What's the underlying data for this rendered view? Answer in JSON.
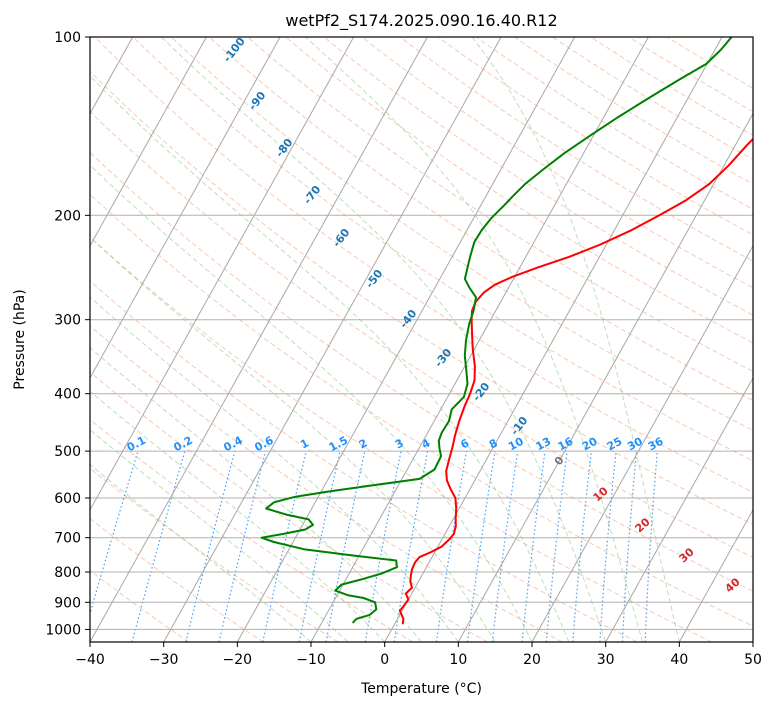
{
  "chart_data": {
    "type": "line",
    "title": "wetPf2_S174.2025.090.16.40.R12",
    "xlabel": "Temperature (°C)",
    "ylabel": "Pressure (hPa)",
    "xlim": [
      -40,
      50
    ],
    "ylim": [
      1050,
      100
    ],
    "yscale": "log",
    "grid": true,
    "x_ticks": [
      -40,
      -30,
      -20,
      -10,
      0,
      10,
      20,
      30,
      40,
      50
    ],
    "y_ticks": [
      100,
      200,
      300,
      400,
      500,
      600,
      700,
      800,
      900,
      1000
    ],
    "mixing_ratio_labels": [
      "0.1",
      "0.2",
      "0.4",
      "0.6",
      "1",
      "1.5",
      "2",
      "3",
      "4",
      "6",
      "8",
      "10",
      "13",
      "16",
      "20",
      "25",
      "30",
      "36"
    ],
    "dry_adiabat_labels": [
      "-100",
      "-90",
      "-80",
      "-70",
      "-60",
      "-50",
      "-40",
      "-30",
      "-20",
      "-10",
      "0"
    ],
    "moist_adiabat_labels": [
      "10",
      "20",
      "30",
      "40"
    ],
    "colors": {
      "temperature": "#ff0000",
      "dewpoint": "#008000",
      "mixing": "#1e90ff",
      "dry_label": "#1f77b4",
      "moist_label": "#d62728"
    },
    "series": [
      {
        "key": "temperature",
        "points": [
          [
            1.1,
            980
          ],
          [
            0.8,
            960
          ],
          [
            -0.3,
            930
          ],
          [
            -0.1,
            905
          ],
          [
            0,
            890
          ],
          [
            -0.8,
            870
          ],
          [
            -0.4,
            850
          ],
          [
            -1.1,
            830
          ],
          [
            -1.5,
            810
          ],
          [
            -1.8,
            790
          ],
          [
            -1.9,
            770
          ],
          [
            -1.7,
            755
          ],
          [
            -0.5,
            740
          ],
          [
            0.5,
            725
          ],
          [
            1.0,
            705
          ],
          [
            1.2,
            690
          ],
          [
            0.9,
            670
          ],
          [
            0.3,
            650
          ],
          [
            -0.4,
            625
          ],
          [
            -1.3,
            600
          ],
          [
            -2.6,
            580
          ],
          [
            -3.8,
            560
          ],
          [
            -4.6,
            540
          ],
          [
            -5.1,
            515
          ],
          [
            -5.6,
            490
          ],
          [
            -6.1,
            470
          ],
          [
            -6.6,
            445
          ],
          [
            -7.0,
            420
          ],
          [
            -7.2,
            400
          ],
          [
            -7.6,
            380
          ],
          [
            -8.6,
            360
          ],
          [
            -10.3,
            335
          ],
          [
            -11.6,
            315
          ],
          [
            -12.6,
            300
          ],
          [
            -13.2,
            290
          ],
          [
            -13.4,
            280
          ],
          [
            -13.0,
            270
          ],
          [
            -12.1,
            262
          ],
          [
            -10.3,
            254
          ],
          [
            -7.6,
            245
          ],
          [
            -4.1,
            235
          ],
          [
            -0.8,
            224
          ],
          [
            2.3,
            212
          ],
          [
            5.0,
            200
          ],
          [
            7.4,
            189
          ],
          [
            9.4,
            177
          ],
          [
            10.6,
            165
          ],
          [
            11.6,
            152
          ],
          [
            12.8,
            140
          ],
          [
            14.3,
            128
          ],
          [
            16.4,
            118
          ],
          [
            18.6,
            110
          ],
          [
            20.6,
            104
          ],
          [
            21.6,
            100
          ]
        ]
      },
      {
        "key": "dewpoint",
        "points": [
          [
            -5.8,
            975
          ],
          [
            -5.6,
            960
          ],
          [
            -4.1,
            945
          ],
          [
            -3.6,
            925
          ],
          [
            -4.3,
            900
          ],
          [
            -6.2,
            885
          ],
          [
            -8.6,
            875
          ],
          [
            -10.6,
            860
          ],
          [
            -10.2,
            840
          ],
          [
            -8.1,
            825
          ],
          [
            -5.6,
            805
          ],
          [
            -4.0,
            785
          ],
          [
            -4.6,
            765
          ],
          [
            -11,
            750
          ],
          [
            -18,
            732
          ],
          [
            -22.6,
            712
          ],
          [
            -24.6,
            700
          ],
          [
            -22,
            690
          ],
          [
            -19.3,
            678
          ],
          [
            -18.6,
            666
          ],
          [
            -19.6,
            652
          ],
          [
            -23,
            640
          ],
          [
            -26.2,
            625
          ],
          [
            -25.6,
            610
          ],
          [
            -23.1,
            597
          ],
          [
            -19,
            585
          ],
          [
            -13,
            570
          ],
          [
            -7.6,
            557
          ],
          [
            -6.3,
            537
          ],
          [
            -6.4,
            510
          ],
          [
            -7.2,
            495
          ],
          [
            -7.9,
            480
          ],
          [
            -8.1,
            465
          ],
          [
            -8.0,
            445
          ],
          [
            -8.5,
            425
          ],
          [
            -7.8,
            405
          ],
          [
            -8.3,
            385
          ],
          [
            -9.5,
            365
          ],
          [
            -10.8,
            345
          ],
          [
            -11.8,
            325
          ],
          [
            -12.6,
            305
          ],
          [
            -13.0,
            290
          ],
          [
            -13.7,
            275
          ],
          [
            -15.3,
            265
          ],
          [
            -16.6,
            256
          ],
          [
            -17.1,
            245
          ],
          [
            -17.6,
            234
          ],
          [
            -18.1,
            222
          ],
          [
            -18.0,
            212
          ],
          [
            -17.6,
            202
          ],
          [
            -16.8,
            192
          ],
          [
            -16.3,
            185
          ],
          [
            -15.6,
            177
          ],
          [
            -14.2,
            167
          ],
          [
            -12.6,
            157
          ],
          [
            -10.3,
            146
          ],
          [
            -7.9,
            136
          ],
          [
            -5.1,
            126
          ],
          [
            -2.6,
            118
          ],
          [
            -0.1,
            111
          ],
          [
            0.8,
            105
          ],
          [
            1.3,
            100
          ]
        ]
      }
    ]
  }
}
